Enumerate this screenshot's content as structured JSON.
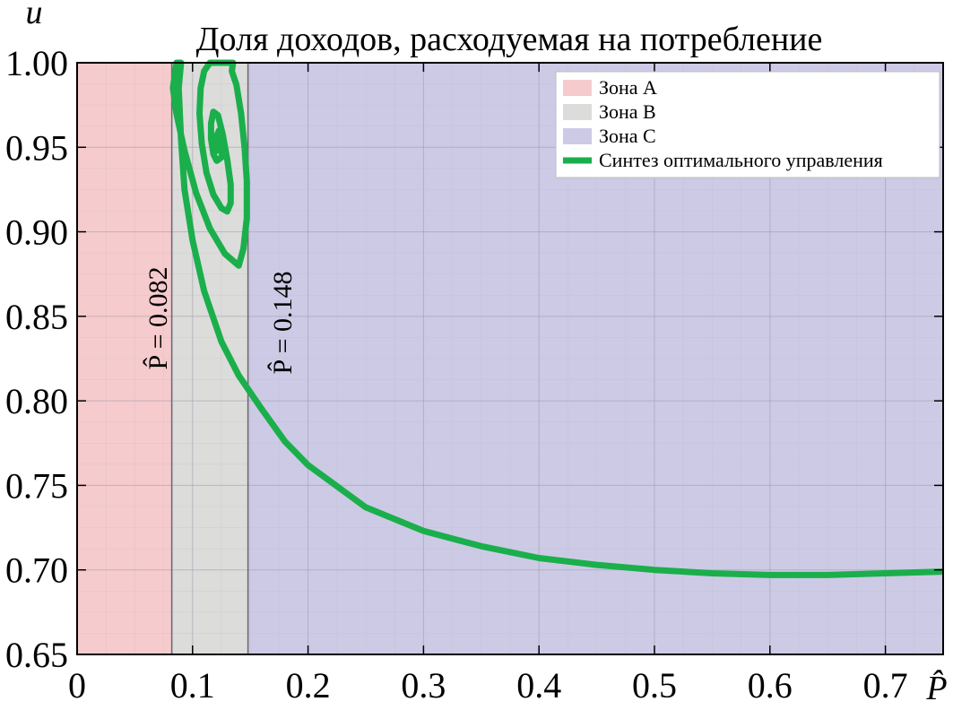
{
  "chart_data": {
    "type": "line",
    "title": "Доля доходов, расходуемая на потребление",
    "xlabel": "P̂",
    "ylabel": "u",
    "xlim": [
      0,
      0.75
    ],
    "ylim": [
      0.65,
      1.0
    ],
    "x_ticks": [
      0,
      0.1,
      0.2,
      0.3,
      0.4,
      0.5,
      0.6,
      0.7
    ],
    "x_tick_labels": [
      "0",
      "0.1",
      "0.2",
      "0.3",
      "0.4",
      "0.5",
      "0.6",
      "0.7"
    ],
    "y_ticks": [
      0.65,
      0.7,
      0.75,
      0.8,
      0.85,
      0.9,
      0.95,
      1.0
    ],
    "y_tick_labels": [
      "0.65",
      "0.70",
      "0.75",
      "0.80",
      "0.85",
      "0.90",
      "0.95",
      "1.00"
    ],
    "grid": true,
    "legend_position": "top-right",
    "zones": [
      {
        "name": "Зона A",
        "x_from": 0,
        "x_to": 0.082,
        "color": "#f6cbcd"
      },
      {
        "name": "Зона B",
        "x_from": 0.082,
        "x_to": 0.148,
        "color": "#dcdcdb"
      },
      {
        "name": "Зона C",
        "x_from": 0.148,
        "x_to": 0.75,
        "color": "#cdcae6"
      }
    ],
    "boundaries": [
      {
        "x": 0.082,
        "label": "P̂ = 0.082"
      },
      {
        "x": 0.148,
        "label": "P̂ = 0.148"
      }
    ],
    "series": [
      {
        "name": "Синтез оптимального управления",
        "color": "#1aaf4b",
        "points": [
          [
            0.123,
            0.955
          ],
          [
            0.124,
            0.95
          ],
          [
            0.122,
            0.948
          ],
          [
            0.12,
            0.952
          ],
          [
            0.121,
            0.957
          ],
          [
            0.123,
            0.96
          ],
          [
            0.126,
            0.956
          ],
          [
            0.127,
            0.95
          ],
          [
            0.125,
            0.944
          ],
          [
            0.121,
            0.942
          ],
          [
            0.118,
            0.946
          ],
          [
            0.116,
            0.955
          ],
          [
            0.116,
            0.964
          ],
          [
            0.118,
            0.971
          ],
          [
            0.122,
            0.969
          ],
          [
            0.126,
            0.958
          ],
          [
            0.13,
            0.943
          ],
          [
            0.133,
            0.928
          ],
          [
            0.133,
            0.917
          ],
          [
            0.13,
            0.912
          ],
          [
            0.125,
            0.914
          ],
          [
            0.118,
            0.922
          ],
          [
            0.112,
            0.935
          ],
          [
            0.108,
            0.952
          ],
          [
            0.106,
            0.97
          ],
          [
            0.107,
            0.985
          ],
          [
            0.11,
            0.995
          ],
          [
            0.115,
            1.0
          ],
          [
            0.125,
            1.0
          ],
          [
            0.135,
            1.0
          ],
          [
            0.134,
            0.995
          ],
          [
            0.138,
            0.987
          ],
          [
            0.142,
            0.97
          ],
          [
            0.145,
            0.95
          ],
          [
            0.147,
            0.93
          ],
          [
            0.147,
            0.908
          ],
          [
            0.144,
            0.89
          ],
          [
            0.14,
            0.88
          ],
          [
            0.128,
            0.887
          ],
          [
            0.115,
            0.902
          ],
          [
            0.103,
            0.923
          ],
          [
            0.093,
            0.948
          ],
          [
            0.086,
            0.97
          ],
          [
            0.083,
            0.985
          ],
          [
            0.086,
            1.0
          ],
          [
            0.09,
            1.0
          ],
          [
            0.088,
            0.985
          ],
          [
            0.09,
            0.955
          ],
          [
            0.093,
            0.925
          ],
          [
            0.1,
            0.895
          ],
          [
            0.11,
            0.865
          ],
          [
            0.125,
            0.835
          ],
          [
            0.14,
            0.815
          ],
          [
            0.16,
            0.795
          ],
          [
            0.18,
            0.776
          ],
          [
            0.2,
            0.762
          ],
          [
            0.25,
            0.737
          ],
          [
            0.3,
            0.723
          ],
          [
            0.35,
            0.714
          ],
          [
            0.4,
            0.707
          ],
          [
            0.45,
            0.703
          ],
          [
            0.5,
            0.7
          ],
          [
            0.55,
            0.698
          ],
          [
            0.6,
            0.697
          ],
          [
            0.65,
            0.697
          ],
          [
            0.7,
            0.698
          ],
          [
            0.75,
            0.699
          ]
        ]
      }
    ]
  }
}
